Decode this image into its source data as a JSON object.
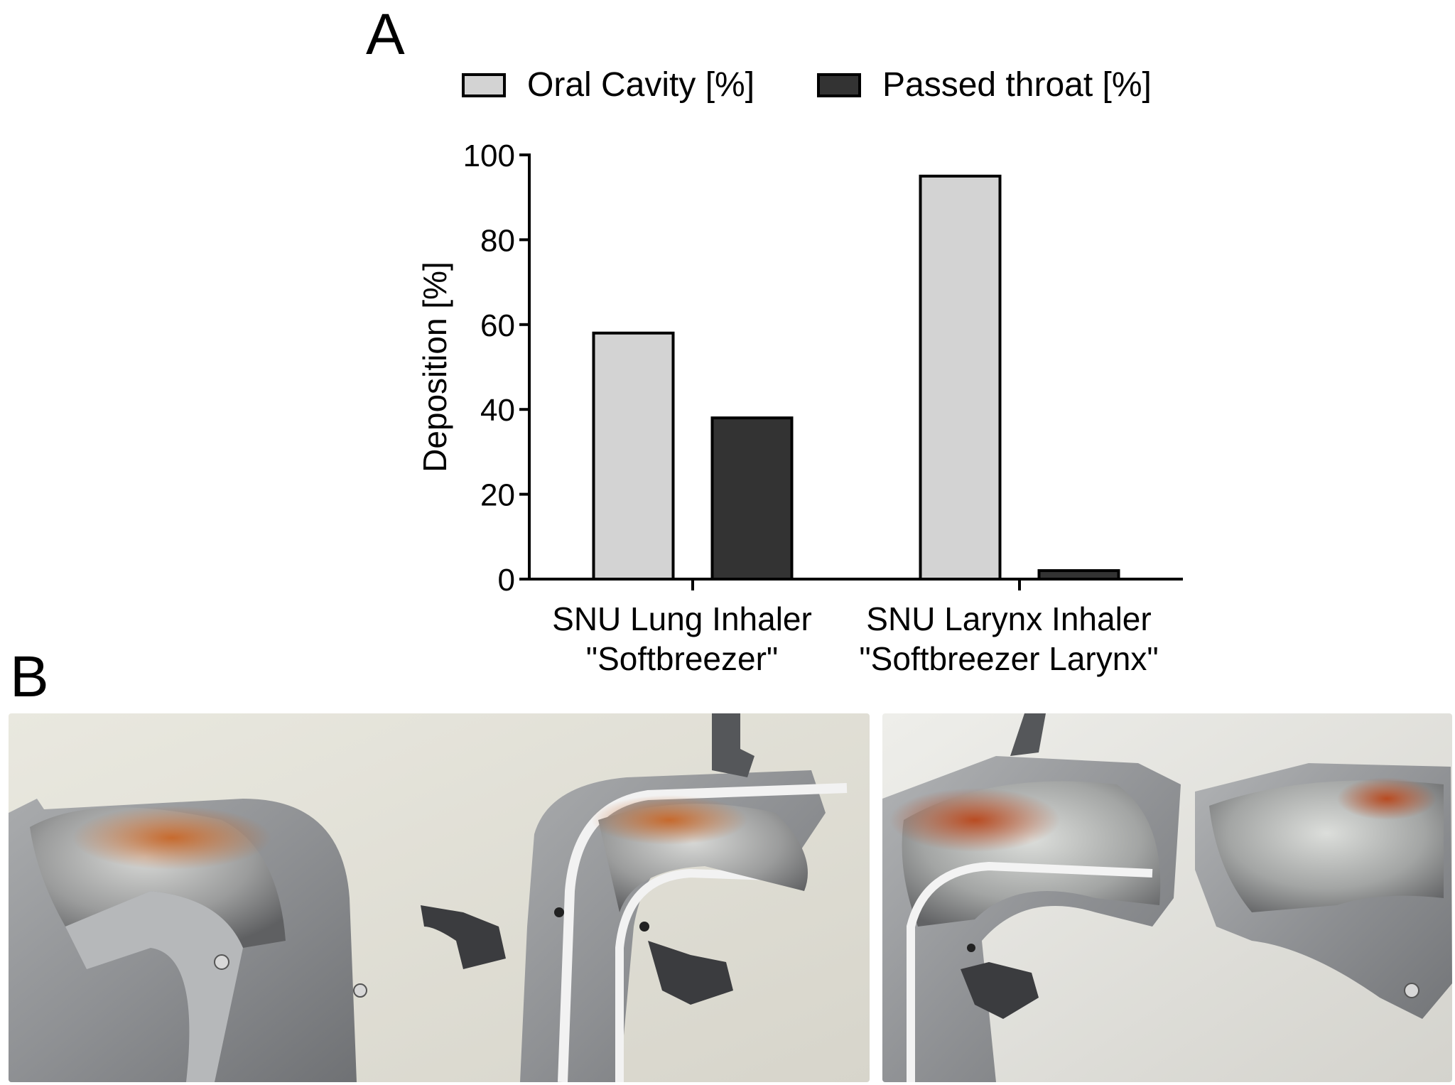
{
  "panels": {
    "a": "A",
    "b": "B"
  },
  "legend": [
    {
      "label": "Oral Cavity [%]",
      "color": "#d3d3d3"
    },
    {
      "label": "Passed throat [%]",
      "color": "#333333"
    }
  ],
  "chart_data": {
    "type": "bar",
    "categories": [
      [
        "SNU Lung Inhaler",
        "\"Softbreezer\""
      ],
      [
        "SNU Larynx Inhaler",
        "\"Softbreezer Larynx\""
      ]
    ],
    "series": [
      {
        "name": "Oral Cavity [%]",
        "values": [
          58,
          95
        ],
        "color": "#d3d3d3"
      },
      {
        "name": "Passed throat [%]",
        "values": [
          38,
          2
        ],
        "color": "#333333"
      }
    ],
    "ylabel": "Deposition [%]",
    "ylim": [
      0,
      100
    ],
    "yticks": [
      0,
      20,
      40,
      60,
      80,
      100
    ],
    "legend_position": "top",
    "grid": false
  }
}
